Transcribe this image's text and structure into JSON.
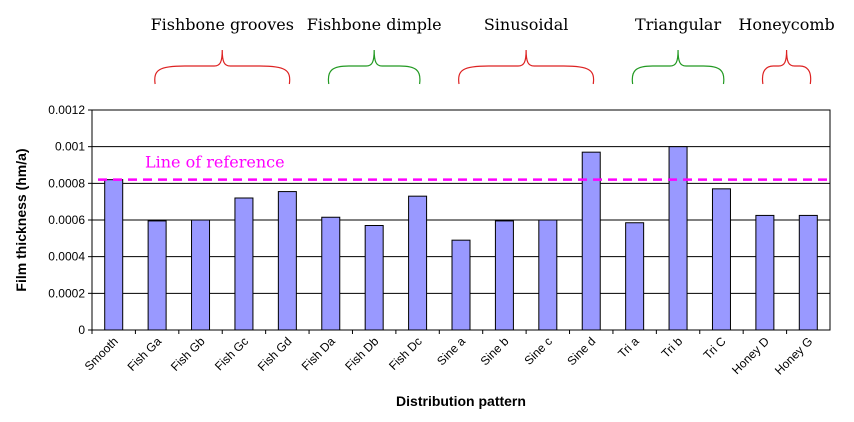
{
  "chart_data": {
    "type": "bar",
    "xlabel": "Distribution pattern",
    "ylabel": "Film thickness (hm/a)",
    "ylim": [
      0,
      0.0012
    ],
    "yticks": [
      0,
      0.0002,
      0.0004,
      0.0006,
      0.0008,
      0.001,
      0.0012
    ],
    "ytick_labels": [
      "0",
      "0.0002",
      "0.0004",
      "0.0006",
      "0.0008",
      "0.001",
      "0.0012"
    ],
    "grid": true,
    "categories": [
      "Smooth",
      "Fish Ga",
      "Fish Gb",
      "Fish Gc",
      "Fish Gd",
      "Fish Da",
      "Fish Db",
      "Fish Dc",
      "Sine a",
      "Sine b",
      "Sine c",
      "Sine d",
      "Tri a",
      "Tri b",
      "Tri C",
      "Honey D",
      "Honey G"
    ],
    "values": [
      0.00082,
      0.000595,
      0.0006,
      0.00072,
      0.000755,
      0.000615,
      0.00057,
      0.00073,
      0.00049,
      0.000595,
      0.0006,
      0.00097,
      0.000585,
      0.001,
      0.00077,
      0.000625,
      0.000625
    ],
    "bar_color": "#9999ff",
    "reference_line": {
      "label": "Line of reference",
      "value": 0.00082,
      "color": "#ff00ff"
    },
    "groups": [
      {
        "label": "Fishbone grooves",
        "start": 1,
        "end": 4,
        "color": "#dd2222"
      },
      {
        "label": "Fishbone dimple",
        "start": 5,
        "end": 7,
        "color": "#229922"
      },
      {
        "label": "Sinusoidal",
        "start": 8,
        "end": 11,
        "color": "#dd2222"
      },
      {
        "label": "Triangular",
        "start": 12,
        "end": 14,
        "color": "#229922"
      },
      {
        "label": "Honeycomb",
        "start": 15,
        "end": 16,
        "color": "#dd2222"
      }
    ]
  }
}
